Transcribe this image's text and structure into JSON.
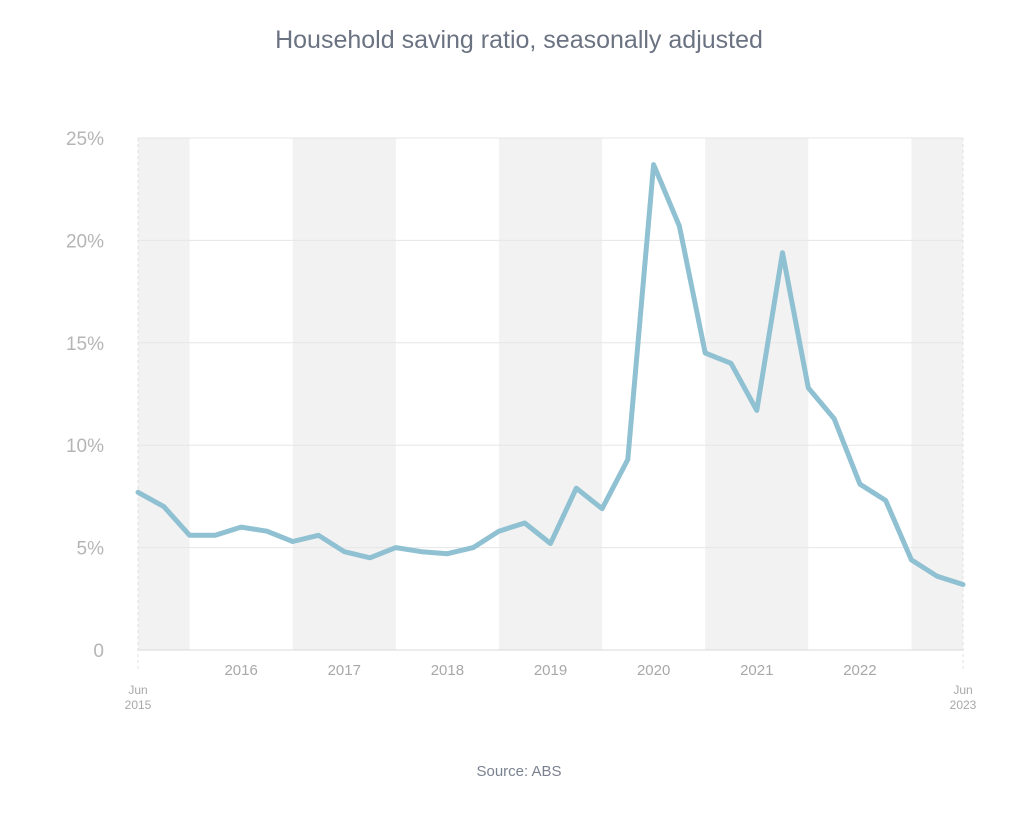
{
  "chart_data": {
    "type": "line",
    "title": "Household saving ratio, seasonally adjusted",
    "source": "Source: ABS",
    "xlabel": "",
    "ylabel": "",
    "ylim": [
      0,
      25
    ],
    "y_ticks": [
      0,
      5,
      10,
      15,
      20,
      25
    ],
    "y_tick_labels": [
      "0",
      "5%",
      "10%",
      "15%",
      "20%",
      "25%"
    ],
    "x_start_label": [
      "Jun",
      "2015"
    ],
    "x_end_label": [
      "Jun",
      "2023"
    ],
    "year_labels": [
      "2016",
      "2017",
      "2018",
      "2019",
      "2020",
      "2021",
      "2022"
    ],
    "grid": true,
    "line_color": "#8fc1d2",
    "band_color": "#f2f2f2",
    "series": [
      {
        "name": "Household saving ratio",
        "x": [
          "Jun 2015",
          "Sep 2015",
          "Dec 2015",
          "Mar 2016",
          "Jun 2016",
          "Sep 2016",
          "Dec 2016",
          "Mar 2017",
          "Jun 2017",
          "Sep 2017",
          "Dec 2017",
          "Mar 2018",
          "Jun 2018",
          "Sep 2018",
          "Dec 2018",
          "Mar 2019",
          "Jun 2019",
          "Sep 2019",
          "Dec 2019",
          "Mar 2020",
          "Jun 2020",
          "Sep 2020",
          "Dec 2020",
          "Mar 2021",
          "Jun 2021",
          "Sep 2021",
          "Dec 2021",
          "Mar 2022",
          "Jun 2022",
          "Sep 2022",
          "Dec 2022",
          "Mar 2023",
          "Jun 2023"
        ],
        "values": [
          7.7,
          7.0,
          5.6,
          5.6,
          6.0,
          5.8,
          5.3,
          5.6,
          4.8,
          4.5,
          5.0,
          4.8,
          4.7,
          5.0,
          5.8,
          6.2,
          5.2,
          7.9,
          6.9,
          9.3,
          23.7,
          20.7,
          14.5,
          14.0,
          11.7,
          19.4,
          12.8,
          11.3,
          8.1,
          7.3,
          4.4,
          3.6,
          3.2
        ]
      }
    ]
  }
}
